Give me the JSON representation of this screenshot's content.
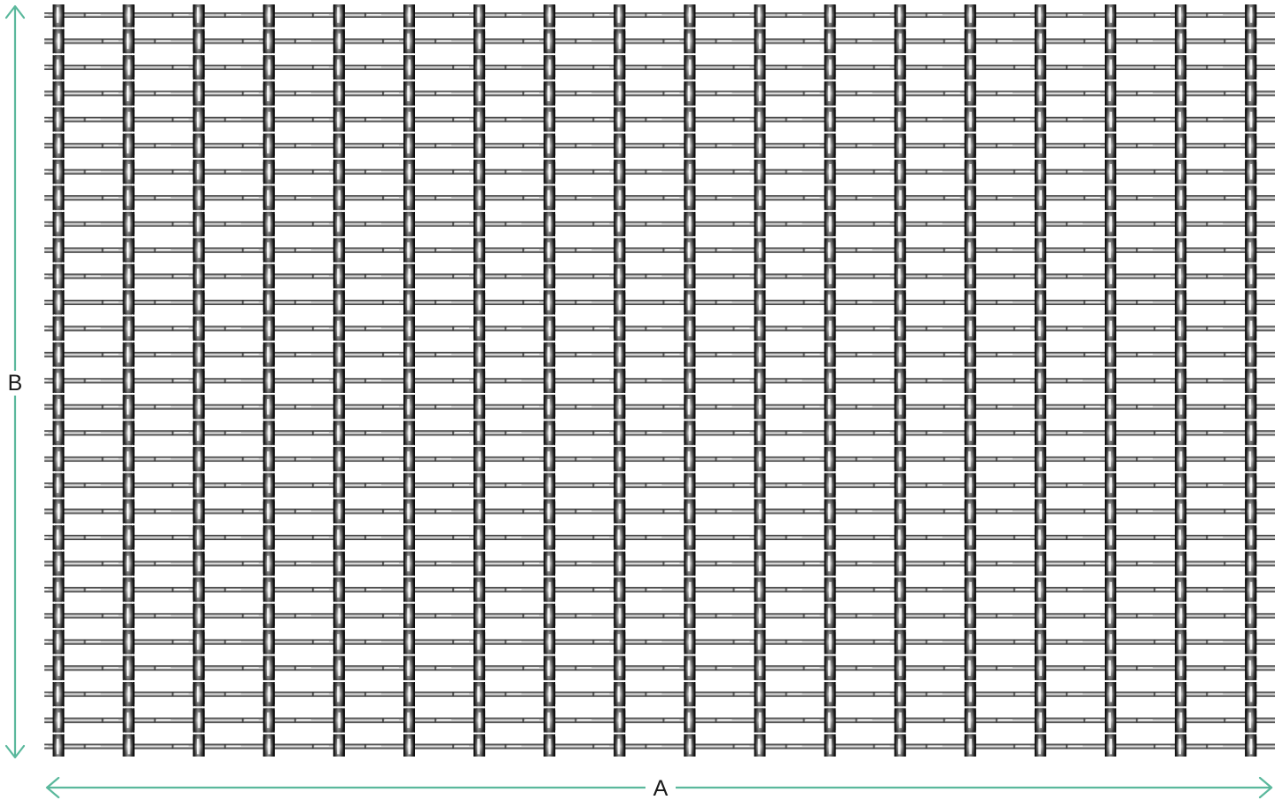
{
  "diagram": {
    "subject": "woven-wire-mesh",
    "colors": {
      "dimension_line": "#5ab89c",
      "wire_dark": "#2a2a2a",
      "wire_light": "#e6e6e6",
      "label_text": "#1a1a1a",
      "background": "#ffffff"
    },
    "mesh": {
      "vertical_wire_count": 18,
      "horizontal_wire_count": 29
    },
    "dimensions": {
      "width_label": "A",
      "height_label": "B"
    }
  }
}
